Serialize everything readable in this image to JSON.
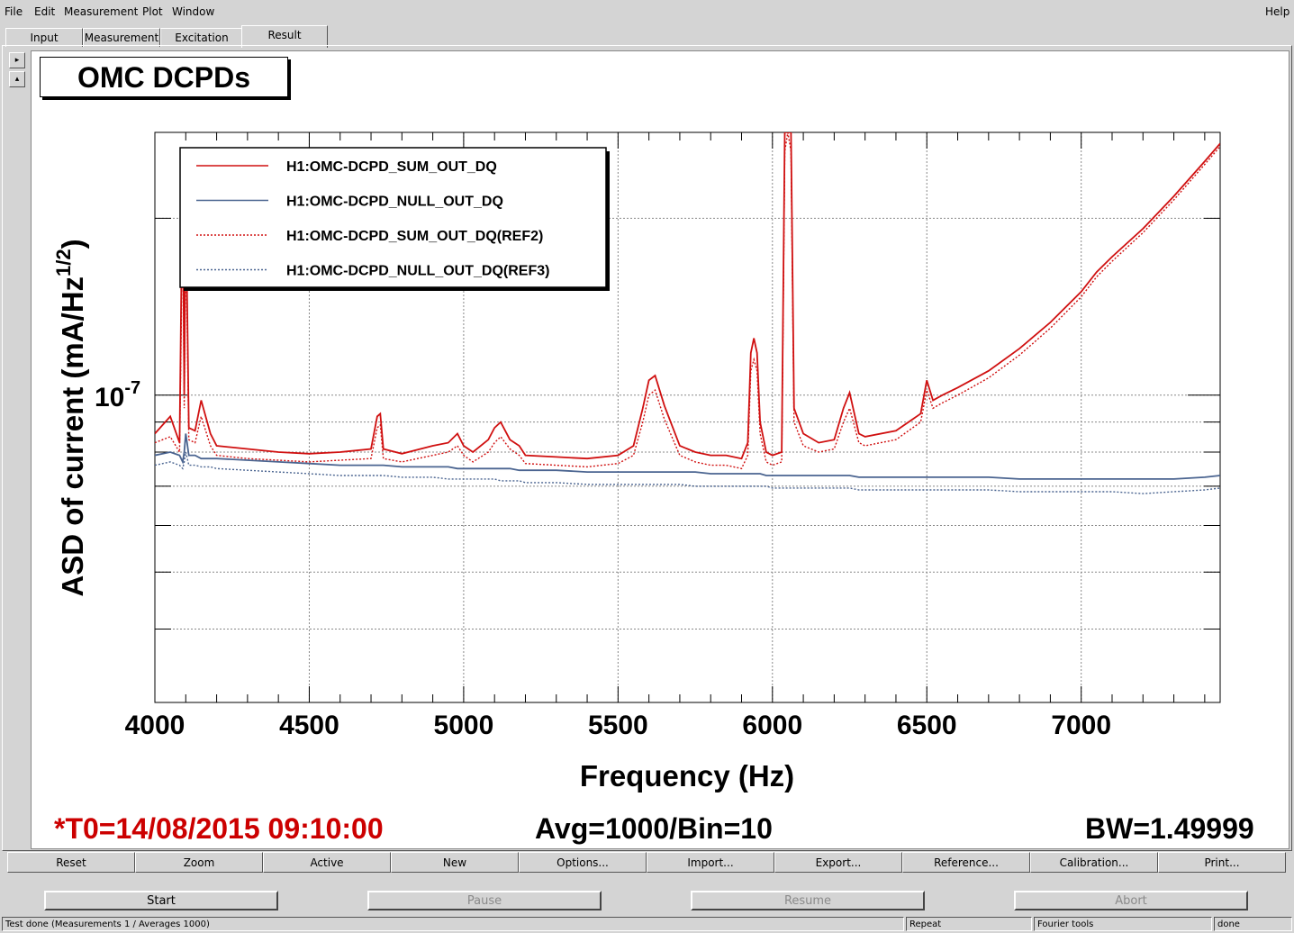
{
  "menu": {
    "file": "File",
    "edit": "Edit",
    "measurement": "Measurement",
    "plot": "Plot",
    "window": "Window",
    "help": "Help"
  },
  "tabs": [
    "Input",
    "Measurement",
    "Excitation",
    "Result"
  ],
  "active_tab": "Result",
  "plot_title": "OMC DCPDs",
  "chart_data": {
    "type": "line",
    "xlabel": "Frequency (Hz)",
    "ylabel": "ASD of current (mA/Hz",
    "ylabel_sup": "1/2",
    "ylabel_end": ")",
    "xlim": [
      4000,
      7450
    ],
    "ylim_log": [
      3e-08,
      2.8e-07
    ],
    "y_scale": "log",
    "x_ticks": [
      "4000",
      "4500",
      "5000",
      "5500",
      "6000",
      "6500",
      "7000"
    ],
    "x_tick_values": [
      4000,
      4500,
      5000,
      5500,
      6000,
      6500,
      7000
    ],
    "y_tick_label_base": "10",
    "y_tick_label_exp": "-7",
    "y_tick_value": 1e-07,
    "grid": true,
    "legend_placement": "top-left",
    "x": [
      4000,
      4050,
      4080,
      4090,
      4095,
      4100,
      4110,
      4130,
      4150,
      4180,
      4200,
      4300,
      4400,
      4500,
      4600,
      4700,
      4720,
      4730,
      4740,
      4800,
      4900,
      4950,
      4980,
      5000,
      5030,
      5080,
      5100,
      5120,
      5150,
      5180,
      5200,
      5300,
      5400,
      5500,
      5550,
      5580,
      5600,
      5620,
      5650,
      5700,
      5750,
      5800,
      5850,
      5900,
      5920,
      5930,
      5940,
      5950,
      5960,
      5980,
      6000,
      6030,
      6040,
      6050,
      6060,
      6070,
      6100,
      6150,
      6200,
      6230,
      6250,
      6280,
      6300,
      6400,
      6480,
      6500,
      6520,
      6550,
      6600,
      6700,
      6800,
      6900,
      7000,
      7050,
      7100,
      7200,
      7300,
      7400,
      7450
    ],
    "series": [
      {
        "name": "H1:OMC-DCPD_SUM_OUT_DQ",
        "color": "#d01010",
        "dash": "solid",
        "values": [
          8.6e-08,
          9.2e-08,
          8.3e-08,
          2.5e-07,
          1e-07,
          2.2e-07,
          8.8e-08,
          8.7e-08,
          9.8e-08,
          8.6e-08,
          8.2e-08,
          8.1e-08,
          8e-08,
          7.95e-08,
          8e-08,
          8.1e-08,
          9.2e-08,
          9.3e-08,
          8.1e-08,
          7.95e-08,
          8.2e-08,
          8.3e-08,
          8.6e-08,
          8.2e-08,
          8e-08,
          8.4e-08,
          8.8e-08,
          9e-08,
          8.4e-08,
          8.2e-08,
          7.9e-08,
          7.85e-08,
          7.8e-08,
          7.9e-08,
          8.2e-08,
          9.5e-08,
          1.06e-07,
          1.08e-07,
          9.6e-08,
          8.2e-08,
          8e-08,
          7.9e-08,
          7.9e-08,
          7.8e-08,
          8.3e-08,
          1.18e-07,
          1.25e-07,
          1.18e-07,
          9e-08,
          8e-08,
          7.9e-08,
          8e-08,
          2.8e-07,
          3.5e-07,
          2.8e-07,
          9.5e-08,
          8.6e-08,
          8.3e-08,
          8.4e-08,
          9.5e-08,
          1.01e-07,
          8.6e-08,
          8.5e-08,
          8.7e-08,
          9.3e-08,
          1.06e-07,
          9.8e-08,
          1e-07,
          1.03e-07,
          1.1e-07,
          1.2e-07,
          1.33e-07,
          1.5e-07,
          1.62e-07,
          1.72e-07,
          1.92e-07,
          2.18e-07,
          2.5e-07,
          2.68e-07
        ]
      },
      {
        "name": "H1:OMC-DCPD_NULL_OUT_DQ",
        "color": "#4a6490",
        "dash": "solid",
        "values": [
          7.9e-08,
          8e-08,
          7.9e-08,
          7.7e-08,
          8e-08,
          8.6e-08,
          7.9e-08,
          7.9e-08,
          7.8e-08,
          7.8e-08,
          7.8e-08,
          7.75e-08,
          7.7e-08,
          7.65e-08,
          7.6e-08,
          7.6e-08,
          7.6e-08,
          7.6e-08,
          7.6e-08,
          7.55e-08,
          7.55e-08,
          7.55e-08,
          7.5e-08,
          7.5e-08,
          7.5e-08,
          7.5e-08,
          7.5e-08,
          7.5e-08,
          7.5e-08,
          7.45e-08,
          7.45e-08,
          7.45e-08,
          7.4e-08,
          7.4e-08,
          7.4e-08,
          7.4e-08,
          7.4e-08,
          7.4e-08,
          7.4e-08,
          7.4e-08,
          7.4e-08,
          7.35e-08,
          7.35e-08,
          7.35e-08,
          7.35e-08,
          7.35e-08,
          7.35e-08,
          7.35e-08,
          7.35e-08,
          7.3e-08,
          7.3e-08,
          7.3e-08,
          7.3e-08,
          7.3e-08,
          7.3e-08,
          7.3e-08,
          7.3e-08,
          7.3e-08,
          7.3e-08,
          7.3e-08,
          7.3e-08,
          7.25e-08,
          7.25e-08,
          7.25e-08,
          7.25e-08,
          7.25e-08,
          7.25e-08,
          7.25e-08,
          7.25e-08,
          7.25e-08,
          7.2e-08,
          7.2e-08,
          7.2e-08,
          7.2e-08,
          7.2e-08,
          7.2e-08,
          7.2e-08,
          7.25e-08,
          7.3e-08
        ]
      },
      {
        "name": "H1:OMC-DCPD_SUM_OUT_DQ(REF2)",
        "color": "#d01010",
        "dash": "dotted",
        "values": [
          8.3e-08,
          8.5e-08,
          8e-08,
          2e-07,
          9.5e-08,
          1.9e-07,
          8.4e-08,
          8.3e-08,
          9.2e-08,
          8.2e-08,
          7.9e-08,
          7.8e-08,
          7.75e-08,
          7.7e-08,
          7.75e-08,
          7.8e-08,
          8.8e-08,
          8.9e-08,
          7.8e-08,
          7.7e-08,
          7.9e-08,
          8e-08,
          8.2e-08,
          7.9e-08,
          7.7e-08,
          8e-08,
          8.3e-08,
          8.5e-08,
          8.1e-08,
          7.9e-08,
          7.65e-08,
          7.6e-08,
          7.55e-08,
          7.65e-08,
          7.9e-08,
          9e-08,
          1e-07,
          1.02e-07,
          9.1e-08,
          7.9e-08,
          7.7e-08,
          7.6e-08,
          7.6e-08,
          7.5e-08,
          7.9e-08,
          1.1e-07,
          1.15e-07,
          1.1e-07,
          8.6e-08,
          7.7e-08,
          7.6e-08,
          7.7e-08,
          2.6e-07,
          3.3e-07,
          2.6e-07,
          9e-08,
          8.2e-08,
          8e-08,
          8.1e-08,
          9e-08,
          9.5e-08,
          8.3e-08,
          8.2e-08,
          8.4e-08,
          9e-08,
          1.02e-07,
          9.5e-08,
          9.7e-08,
          1e-07,
          1.07e-07,
          1.17e-07,
          1.3e-07,
          1.47e-07,
          1.59e-07,
          1.69e-07,
          1.89e-07,
          2.15e-07,
          2.47e-07,
          2.65e-07
        ]
      },
      {
        "name": "H1:OMC-DCPD_NULL_OUT_DQ(REF3)",
        "color": "#4a6490",
        "dash": "dotted",
        "values": [
          7.6e-08,
          7.7e-08,
          7.6e-08,
          7.5e-08,
          7.7e-08,
          8e-08,
          7.6e-08,
          7.6e-08,
          7.55e-08,
          7.55e-08,
          7.5e-08,
          7.45e-08,
          7.4e-08,
          7.35e-08,
          7.3e-08,
          7.3e-08,
          7.3e-08,
          7.3e-08,
          7.3e-08,
          7.25e-08,
          7.25e-08,
          7.2e-08,
          7.2e-08,
          7.2e-08,
          7.2e-08,
          7.2e-08,
          7.2e-08,
          7.15e-08,
          7.15e-08,
          7.15e-08,
          7.1e-08,
          7.1e-08,
          7.05e-08,
          7.05e-08,
          7.05e-08,
          7.05e-08,
          7.05e-08,
          7.05e-08,
          7.05e-08,
          7.05e-08,
          7e-08,
          7e-08,
          7e-08,
          7e-08,
          7e-08,
          7e-08,
          7e-08,
          7e-08,
          7e-08,
          7e-08,
          6.95e-08,
          6.95e-08,
          6.95e-08,
          6.95e-08,
          6.95e-08,
          6.95e-08,
          6.95e-08,
          6.95e-08,
          6.95e-08,
          6.95e-08,
          6.95e-08,
          6.9e-08,
          6.9e-08,
          6.9e-08,
          6.9e-08,
          6.9e-08,
          6.9e-08,
          6.9e-08,
          6.9e-08,
          6.9e-08,
          6.85e-08,
          6.85e-08,
          6.85e-08,
          6.85e-08,
          6.85e-08,
          6.8e-08,
          6.85e-08,
          6.9e-08,
          6.95e-08
        ]
      }
    ]
  },
  "footer": {
    "t0": "*T0=14/08/2015 09:10:00",
    "avg": "Avg=1000/Bin=10",
    "bw": "BW=1.49999",
    "t0_color": "#cc0000"
  },
  "toolbar": [
    "Reset",
    "Zoom",
    "Active",
    "New",
    "Options...",
    "Import...",
    "Export...",
    "Reference...",
    "Calibration...",
    "Print..."
  ],
  "controls": {
    "start": "Start",
    "pause": "Pause",
    "resume": "Resume",
    "abort": "Abort"
  },
  "status": {
    "main": "Test done (Measurements 1 / Averages 1000)",
    "repeat": "Repeat",
    "tools": "Fourier tools",
    "state": "done"
  }
}
